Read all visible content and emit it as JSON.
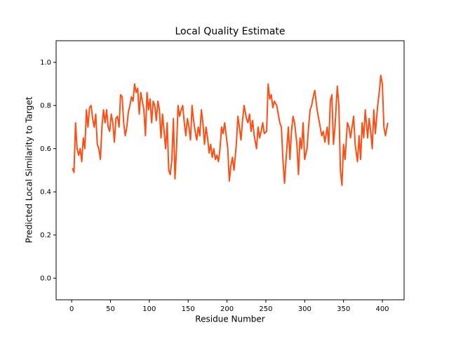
{
  "chart_data": {
    "type": "line",
    "title": "Local Quality Estimate",
    "x_label": "Residue Number",
    "y_label": "Predicted Local Similarity to Target",
    "x": [
      1,
      3,
      5,
      7,
      9,
      11,
      13,
      15,
      17,
      19,
      21,
      23,
      25,
      27,
      29,
      31,
      33,
      35,
      37,
      39,
      41,
      43,
      45,
      47,
      49,
      51,
      53,
      55,
      57,
      59,
      61,
      63,
      65,
      67,
      69,
      71,
      73,
      75,
      77,
      79,
      81,
      83,
      85,
      87,
      89,
      91,
      93,
      95,
      97,
      99,
      101,
      103,
      105,
      107,
      109,
      111,
      113,
      115,
      117,
      119,
      121,
      123,
      125,
      127,
      129,
      131,
      133,
      135,
      137,
      139,
      141,
      143,
      145,
      147,
      149,
      151,
      153,
      155,
      157,
      159,
      161,
      163,
      165,
      167,
      169,
      171,
      173,
      175,
      177,
      179,
      181,
      183,
      185,
      187,
      189,
      191,
      193,
      195,
      197,
      199,
      201,
      203,
      205,
      207,
      209,
      212,
      214,
      216,
      218,
      220,
      222,
      225,
      227,
      229,
      231,
      233,
      235,
      238,
      240,
      242,
      244,
      246,
      248,
      251,
      253,
      255,
      257,
      259,
      261,
      264,
      266,
      268,
      270,
      272,
      274,
      277,
      279,
      281,
      283,
      285,
      287,
      290,
      292,
      294,
      296,
      298,
      300,
      303,
      305,
      307,
      309,
      311,
      313,
      316,
      318,
      320,
      322,
      324,
      326,
      329,
      331,
      333,
      335,
      337,
      339,
      342,
      344,
      346,
      348,
      350,
      352,
      355,
      357,
      359,
      361,
      363,
      365,
      368,
      370,
      372,
      374,
      376,
      378,
      381,
      383,
      385,
      387,
      389,
      391,
      394,
      396,
      398,
      400,
      402,
      404,
      407
    ],
    "series": [
      {
        "color": "#ff4d14",
        "values": [
          0.51,
          0.49,
          0.72,
          0.6,
          0.57,
          0.6,
          0.54,
          0.65,
          0.6,
          0.78,
          0.7,
          0.79,
          0.8,
          0.74,
          0.7,
          0.76,
          0.62,
          0.6,
          0.55,
          0.7,
          0.78,
          0.72,
          0.78,
          0.7,
          0.68,
          0.76,
          0.72,
          0.63,
          0.74,
          0.75,
          0.7,
          0.85,
          0.84,
          0.72,
          0.66,
          0.7,
          0.77,
          0.8,
          0.84,
          0.82,
          0.9,
          0.86,
          0.88,
          0.76,
          0.86,
          0.82,
          0.78,
          0.66,
          0.86,
          0.78,
          0.83,
          0.72,
          0.82,
          0.8,
          0.73,
          0.82,
          0.78,
          0.65,
          0.76,
          0.68,
          0.6,
          0.72,
          0.5,
          0.48,
          0.55,
          0.74,
          0.46,
          0.6,
          0.8,
          0.75,
          0.78,
          0.8,
          0.72,
          0.66,
          0.74,
          0.7,
          0.64,
          0.8,
          0.73,
          0.68,
          0.64,
          0.7,
          0.66,
          0.78,
          0.72,
          0.62,
          0.7,
          0.65,
          0.58,
          0.62,
          0.56,
          0.6,
          0.55,
          0.57,
          0.54,
          0.6,
          0.7,
          0.67,
          0.72,
          0.66,
          0.6,
          0.45,
          0.52,
          0.56,
          0.5,
          0.62,
          0.75,
          0.7,
          0.64,
          0.73,
          0.8,
          0.74,
          0.72,
          0.76,
          0.68,
          0.73,
          0.66,
          0.6,
          0.7,
          0.65,
          0.68,
          0.72,
          0.67,
          0.68,
          0.9,
          0.83,
          0.85,
          0.79,
          0.82,
          0.8,
          0.76,
          0.72,
          0.7,
          0.55,
          0.44,
          0.6,
          0.7,
          0.55,
          0.68,
          0.75,
          0.72,
          0.62,
          0.48,
          0.65,
          0.6,
          0.72,
          0.55,
          0.6,
          0.7,
          0.78,
          0.8,
          0.84,
          0.87,
          0.78,
          0.74,
          0.7,
          0.66,
          0.68,
          0.63,
          0.7,
          0.62,
          0.82,
          0.85,
          0.62,
          0.7,
          0.89,
          0.8,
          0.5,
          0.43,
          0.62,
          0.55,
          0.72,
          0.7,
          0.65,
          0.7,
          0.75,
          0.62,
          0.54,
          0.66,
          0.55,
          0.72,
          0.65,
          0.78,
          0.65,
          0.74,
          0.68,
          0.6,
          0.78,
          0.67,
          0.8,
          0.86,
          0.94,
          0.9,
          0.7,
          0.66,
          0.72
        ]
      }
    ],
    "xlim": [
      -20,
      428
    ],
    "ylim": [
      -0.1,
      1.1
    ],
    "xticks": [
      0,
      50,
      100,
      150,
      200,
      250,
      300,
      350,
      400
    ],
    "yticks": [
      {
        "value": 0,
        "label": "0.0"
      },
      0.2,
      0.4,
      0.6,
      0.8,
      {
        "value": 1,
        "label": "1.0"
      }
    ]
  }
}
